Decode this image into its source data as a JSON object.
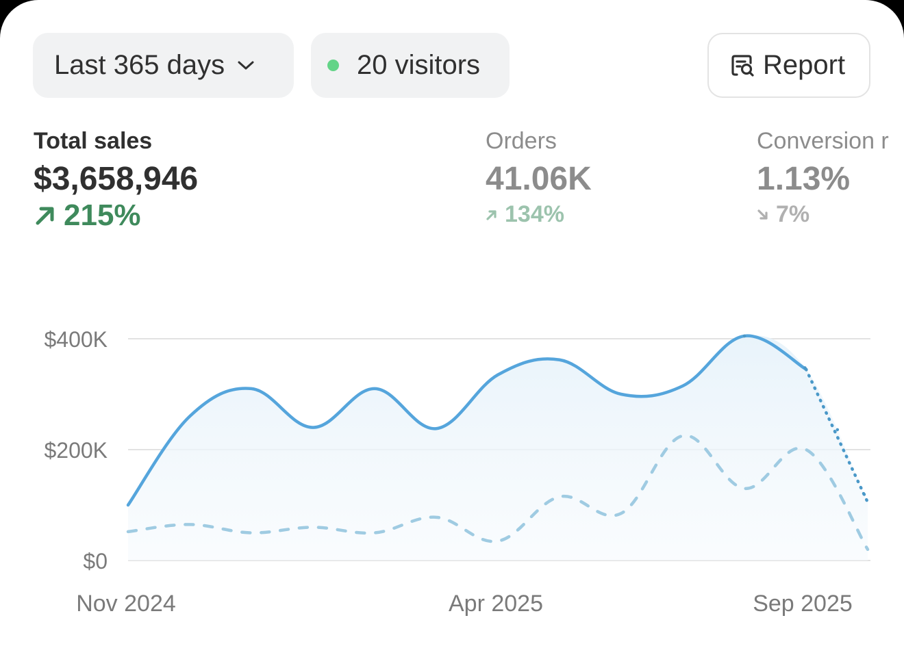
{
  "toolbar": {
    "range_label": "Last 365 days",
    "visitors_label": "20 visitors",
    "report_label": "Report"
  },
  "metrics": {
    "sales": {
      "label": "Total sales",
      "value": "$3,658,946",
      "delta": "215%",
      "direction": "up"
    },
    "orders": {
      "label": "Orders",
      "value": "41.06K",
      "delta": "134%",
      "direction": "up"
    },
    "conversion": {
      "label": "Conversion r",
      "value": "1.13%",
      "delta": "7%",
      "direction": "down"
    }
  },
  "colors": {
    "current_series": "#55a5dc",
    "previous_series": "#9fcbe2",
    "positive": "#3f8a5c",
    "live_dot": "#63d487"
  },
  "chart_data": {
    "type": "line",
    "x_tick_labels": [
      "Nov 2024",
      "Apr 2025",
      "Sep 2025"
    ],
    "y_tick_labels": [
      "$0",
      "$200K",
      "$400K"
    ],
    "y_ticks": [
      0,
      200000,
      400000
    ],
    "ylim": [
      0,
      400000
    ],
    "grid": true,
    "points_count": 13,
    "series": [
      {
        "style": "solid-with-area",
        "values": [
          100000,
          260000,
          310000,
          240000,
          310000,
          238000,
          335000,
          362000,
          300000,
          315000,
          405000,
          345000,
          105000
        ],
        "incomplete_last_segment": true
      },
      {
        "style": "dashed",
        "values": [
          52000,
          65000,
          50000,
          60000,
          50000,
          78000,
          35000,
          115000,
          85000,
          225000,
          130000,
          200000,
          20000
        ]
      }
    ]
  }
}
